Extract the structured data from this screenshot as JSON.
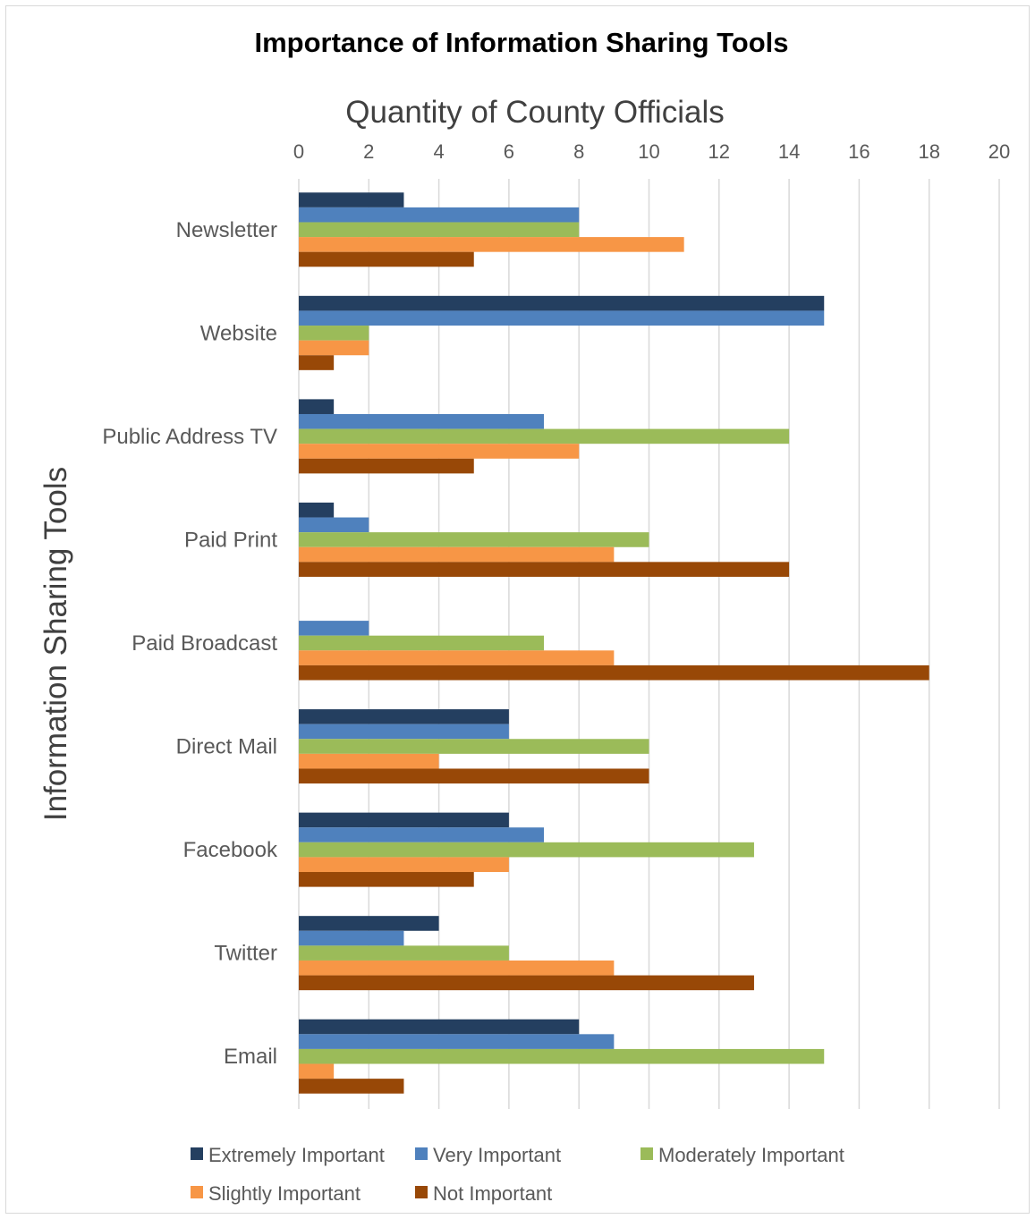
{
  "chart_data": {
    "type": "bar",
    "orientation": "horizontal",
    "title": "Importance of Information Sharing Tools",
    "xlabel": "Quantity of County Officials",
    "ylabel": "Information Sharing Tools",
    "xlim": [
      0,
      20
    ],
    "x_ticks": [
      0,
      2,
      4,
      6,
      8,
      10,
      12,
      14,
      16,
      18,
      20
    ],
    "grid": "vertical",
    "x_axis_position": "top",
    "legend_position": "bottom",
    "categories": [
      "Newsletter",
      "Website",
      "Public Address TV",
      "Paid Print",
      "Paid Broadcast",
      "Direct Mail",
      "Facebook",
      "Twitter",
      "Email"
    ],
    "series": [
      {
        "name": "Extremely Important",
        "color": "#243f60",
        "values": [
          3,
          15,
          1,
          1,
          0,
          6,
          6,
          4,
          8
        ]
      },
      {
        "name": "Very Important",
        "color": "#4f81bd",
        "values": [
          8,
          15,
          7,
          2,
          2,
          6,
          7,
          3,
          9
        ]
      },
      {
        "name": "Moderately Important",
        "color": "#9bbb59",
        "values": [
          8,
          2,
          14,
          10,
          7,
          10,
          13,
          6,
          15
        ]
      },
      {
        "name": "Slightly Important",
        "color": "#f79646",
        "values": [
          11,
          2,
          8,
          9,
          9,
          4,
          6,
          9,
          1
        ]
      },
      {
        "name": "Not Important",
        "color": "#984807",
        "values": [
          5,
          1,
          5,
          14,
          18,
          10,
          5,
          13,
          3
        ]
      }
    ]
  }
}
